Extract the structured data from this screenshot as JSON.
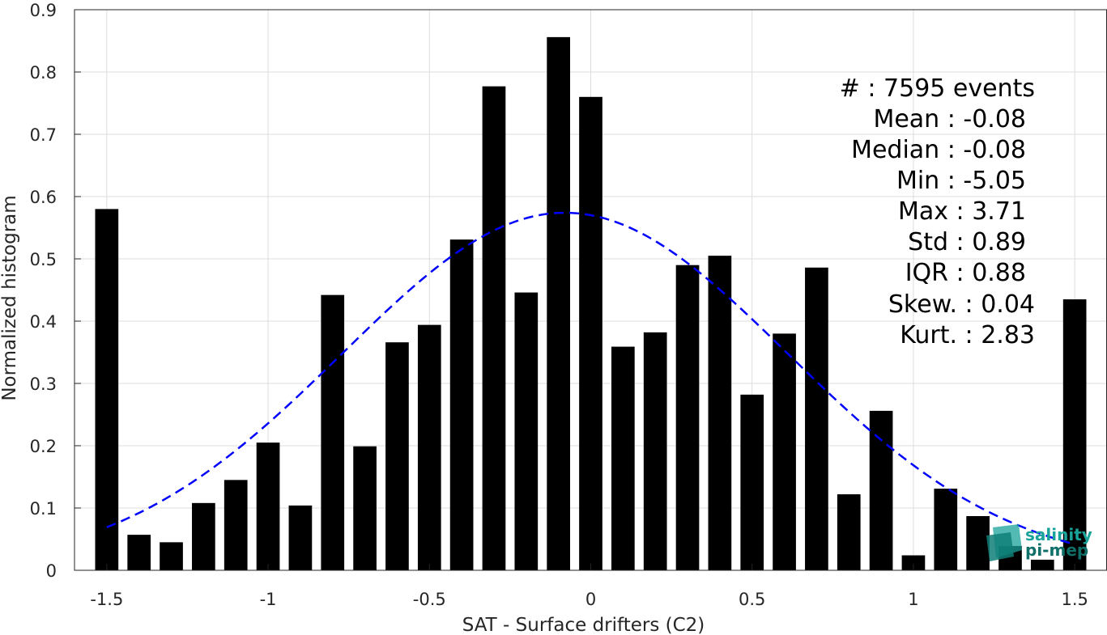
{
  "chart_data": {
    "type": "bar",
    "xlabel": "SAT - Surface drifters (C2)",
    "ylabel": "Normalized histogram",
    "xlim": [
      -1.6,
      1.6
    ],
    "ylim": [
      0,
      0.9
    ],
    "xticks": [
      "-1.5",
      "-1",
      "-0.5",
      "0",
      "0.5",
      "1",
      "1.5"
    ],
    "yticks": [
      "0",
      "0.1",
      "0.2",
      "0.3",
      "0.4",
      "0.5",
      "0.6",
      "0.7",
      "0.8",
      "0.9"
    ],
    "grid": true,
    "bar_centers": [
      -1.5,
      -1.4,
      -1.3,
      -1.2,
      -1.1,
      -1.0,
      -0.9,
      -0.8,
      -0.7,
      -0.6,
      -0.5,
      -0.4,
      -0.3,
      -0.2,
      -0.1,
      0.0,
      0.1,
      0.2,
      0.3,
      0.4,
      0.5,
      0.6,
      0.7,
      0.8,
      0.9,
      1.0,
      1.1,
      1.2,
      1.3,
      1.4,
      1.5
    ],
    "values": [
      0.58,
      0.057,
      0.045,
      0.108,
      0.145,
      0.205,
      0.104,
      0.442,
      0.199,
      0.366,
      0.394,
      0.531,
      0.777,
      0.446,
      0.856,
      0.76,
      0.359,
      0.382,
      0.49,
      0.505,
      0.282,
      0.38,
      0.486,
      0.122,
      0.256,
      0.024,
      0.131,
      0.087,
      0.039,
      0.017,
      0.435
    ],
    "bar_color": "#000000",
    "fit_curve": {
      "style": "dashed",
      "color": "#0000ff",
      "mean": -0.08,
      "std": 0.69,
      "peak": 0.574,
      "x_range": [
        -1.5,
        1.5
      ]
    }
  },
  "stats": [
    "#  : 7595 events",
    "Mean : -0.08",
    "Median : -0.08",
    "Min : -5.05",
    "Max : 3.71",
    "Std : 0.89",
    "IQR : 0.88",
    "Skew. : 0.04",
    "Kurt. : 2.83"
  ],
  "logo": {
    "line1": "salinity",
    "line2": "pi-mep",
    "color": "#1aa39a"
  }
}
